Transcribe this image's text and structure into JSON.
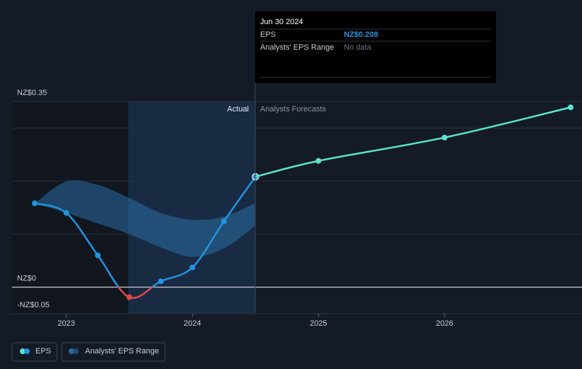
{
  "chart_data": {
    "type": "line",
    "x": [
      2022.75,
      2023,
      2023.25,
      2023.5,
      2023.75,
      2024,
      2024.25,
      2024.5
    ],
    "series": [
      {
        "name": "EPS",
        "color": "#2394df",
        "negative_color": "#e0484a",
        "values": [
          0.158,
          0.14,
          0.06,
          -0.019,
          0.011,
          0.037,
          0.124,
          0.208
        ]
      },
      {
        "name": "Analysts Forecasts",
        "color": "#58e6d0",
        "x": [
          2024.5,
          2025,
          2026,
          2027
        ],
        "values": [
          0.208,
          0.238,
          0.282,
          0.339
        ]
      }
    ],
    "range": {
      "name": "Analysts' EPS Range",
      "color": "#2a6ea3",
      "high": [
        0.158,
        0.199,
        0.193,
        0.168,
        0.14,
        0.127,
        0.133,
        0.158
      ],
      "low": [
        0.158,
        0.14,
        0.12,
        0.1,
        0.075,
        0.057,
        0.073,
        0.116
      ]
    },
    "xlim": [
      2022.57,
      2027
    ],
    "xticks": [
      2023,
      2024,
      2025,
      2026
    ],
    "ylim": [
      -0.05,
      0.35
    ],
    "yticks": [
      {
        "value": -0.05,
        "label": "-NZ$0.05"
      },
      {
        "value": 0,
        "label": "NZ$0"
      },
      {
        "value": 0.1,
        "label": null
      },
      {
        "value": 0.2,
        "label": null
      },
      {
        "value": 0.3,
        "label": null
      },
      {
        "value": 0.35,
        "label": "NZ$0.35"
      }
    ],
    "annotations": {
      "actual": "Actual",
      "forecast": "Analysts Forecasts"
    },
    "tooltip": {
      "date": "Jun 30 2024",
      "rows": [
        [
          "EPS",
          "NZ$0.208"
        ],
        [
          "Analysts' EPS Range",
          "No data"
        ]
      ]
    },
    "legend": [
      "EPS",
      "Analysts' EPS Range"
    ]
  }
}
